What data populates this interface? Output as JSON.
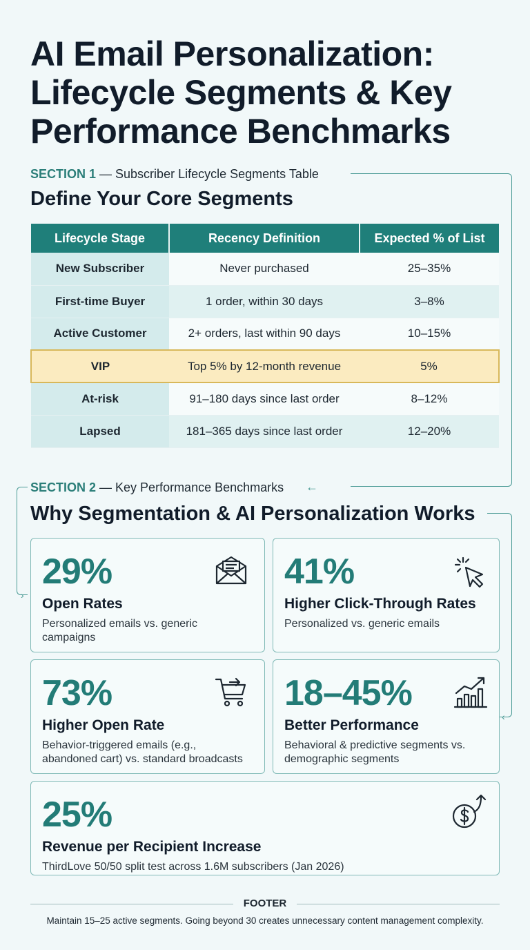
{
  "title": "AI Email Personalization: Lifecycle Segments & Key Performance Benchmarks",
  "section1": {
    "label_num": "SECTION 1",
    "label_text": " — Subscriber Lifecycle Segments Table",
    "heading": "Define Your Core Segments"
  },
  "table": {
    "headers": [
      "Lifecycle Stage",
      "Recency Definition",
      "Expected % of List"
    ],
    "rows": [
      {
        "stage": "New Subscriber",
        "definition": "Never purchased",
        "pct": "25–35%"
      },
      {
        "stage": "First-time Buyer",
        "definition": "1 order, within 30 days",
        "pct": "3–8%"
      },
      {
        "stage": "Active Customer",
        "definition": "2+ orders, last within 90 days",
        "pct": "10–15%"
      },
      {
        "stage": "VIP",
        "definition": "Top 5% by 12-month revenue",
        "pct": "5%"
      },
      {
        "stage": "At-risk",
        "definition": "91–180 days since last order",
        "pct": "8–12%"
      },
      {
        "stage": "Lapsed",
        "definition": "181–365 days since last order",
        "pct": "12–20%"
      }
    ]
  },
  "section2": {
    "label_num": "SECTION 2",
    "label_text": " — Key Performance Benchmarks",
    "heading": "Why Segmentation & AI Personalization Works"
  },
  "stats": [
    {
      "value": "29%",
      "label": "Open Rates",
      "desc": "Personalized emails vs. generic campaigns",
      "icon": "envelope-icon"
    },
    {
      "value": "41%",
      "label": "Higher Click-Through Rates",
      "desc": "Personalized vs. generic emails",
      "icon": "cursor-click-icon"
    },
    {
      "value": "73%",
      "label": "Higher Open Rate",
      "desc": "Behavior-triggered emails (e.g., abandoned cart) vs. standard broadcasts",
      "icon": "shopping-cart-icon"
    },
    {
      "value": "18–45%",
      "label": "Better Performance",
      "desc": "Behavioral & predictive segments vs. demographic segments",
      "icon": "bar-chart-growth-icon"
    },
    {
      "value": "25%",
      "label": "Revenue per Recipient Increase",
      "desc": "ThirdLove 50/50 split test across 1.6M subscribers (Jan 2026)",
      "icon": "dollar-growth-icon"
    }
  ],
  "footer": {
    "title": "FOOTER",
    "text": "Maintain 15–25 active segments. Going beyond 30 creates unnecessary content management complexity."
  },
  "colors": {
    "accent": "#1f7f7a",
    "vip_highlight": "#fbebc0",
    "background": "#f1f8f9"
  }
}
